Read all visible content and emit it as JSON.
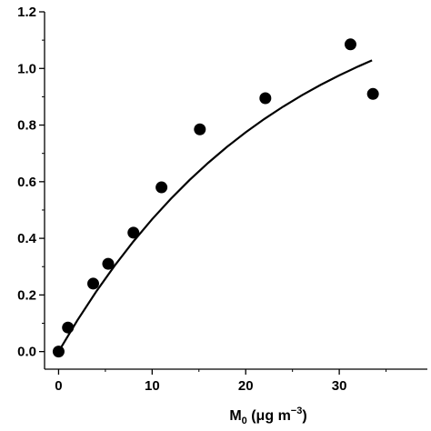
{
  "chart_data": {
    "type": "scatter",
    "title": "",
    "xlabel": {
      "base": "M",
      "sub": "0",
      "unit_open": " (μg m",
      "sup": "−3",
      "unit_close": ")"
    },
    "ylabel": "",
    "xlim": [
      -1.5,
      36.5
    ],
    "ylim": [
      -0.03,
      1.2
    ],
    "xticks": [
      0,
      10,
      20,
      30
    ],
    "yticks": [
      0.0,
      0.2,
      0.4,
      0.6,
      0.8,
      1.0,
      1.2
    ],
    "ytick_labels": [
      "0.0",
      "0.2",
      "0.4",
      "0.6",
      "0.8",
      "1.0",
      "1.2"
    ],
    "xtick_labels": [
      "0",
      "10",
      "20",
      "30"
    ],
    "grid": false,
    "series": [
      {
        "type": "scatter",
        "color": "#000000",
        "x": [
          0.0,
          1.0,
          3.7,
          5.3,
          8.0,
          11.0,
          15.1,
          22.1,
          31.2,
          33.6
        ],
        "y": [
          0.0,
          0.085,
          0.24,
          0.31,
          0.42,
          0.58,
          0.785,
          0.895,
          1.085,
          0.91
        ]
      },
      {
        "type": "line",
        "color": "#000000",
        "x": [
          0,
          2,
          4,
          6,
          8,
          10,
          12,
          14,
          16,
          18,
          20,
          22,
          24,
          26,
          28,
          30,
          32,
          33.5
        ],
        "y": [
          0.0,
          0.1248,
          0.2397,
          0.3452,
          0.4422,
          0.5314,
          0.6134,
          0.6887,
          0.7579,
          0.8216,
          0.8801,
          0.9338,
          0.9832,
          1.0286,
          1.0703,
          1.1087,
          1.144,
          1.1687
        ]
      }
    ]
  }
}
